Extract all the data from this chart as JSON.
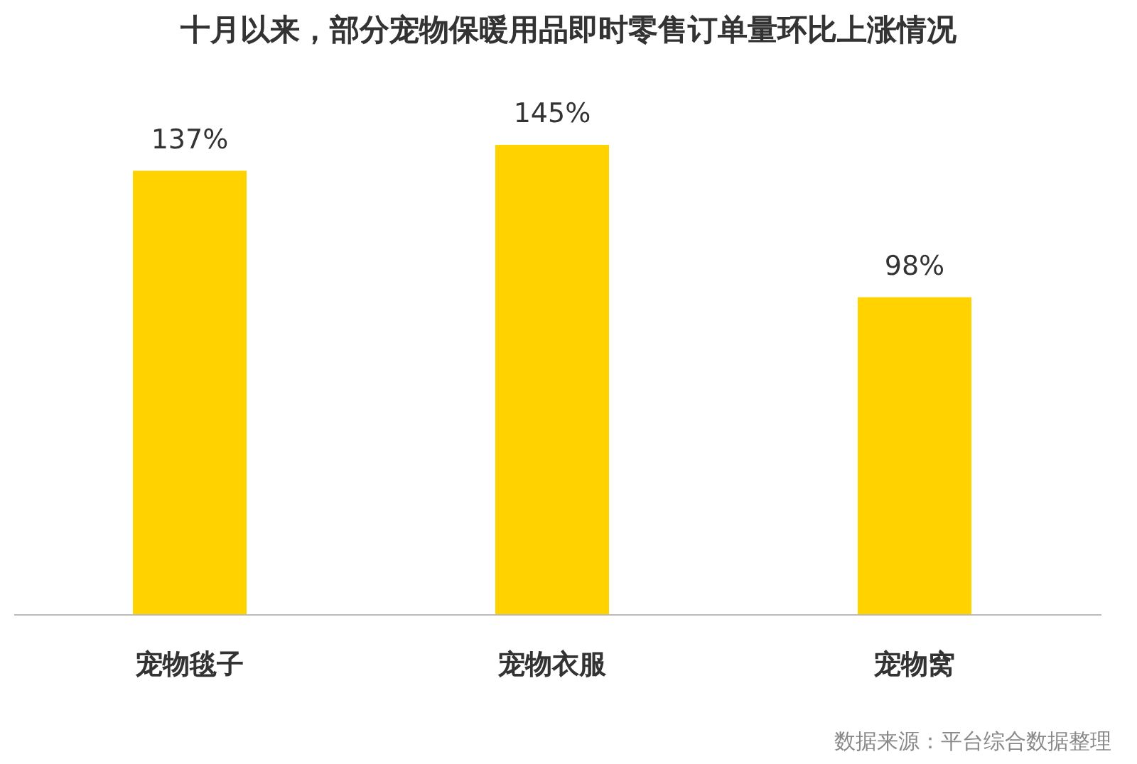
{
  "chart_data": {
    "type": "bar",
    "title": "十月以来，部分宠物保暖用品即时零售订单量环比上涨情况",
    "categories": [
      "宠物毯子",
      "宠物衣服",
      "宠物窝"
    ],
    "values": [
      137,
      145,
      98
    ],
    "value_labels": [
      "137%",
      "145%",
      "98%"
    ],
    "color": "#ffd200",
    "annotations": [
      "数据来源：平台综合数据整理"
    ]
  }
}
